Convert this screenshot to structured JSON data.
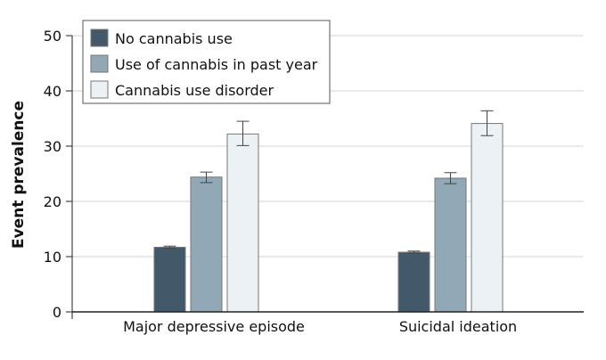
{
  "chart_data": {
    "type": "bar",
    "title": "",
    "xlabel": "",
    "ylabel": "Event prevalence",
    "ylim": [
      0,
      50
    ],
    "yticks": [
      0,
      10,
      20,
      30,
      40,
      50
    ],
    "grid": true,
    "legend_placement": "top-left",
    "categories": [
      "Major depressive episode",
      "Suicidal ideation"
    ],
    "series": [
      {
        "name": "No cannabis use",
        "color": "#43596a",
        "values": [
          11.7,
          10.8
        ],
        "error_low": [
          11.5,
          10.6
        ],
        "error_high": [
          11.9,
          11.0
        ]
      },
      {
        "name": "Use of cannabis in past year",
        "color": "#91a8b6",
        "values": [
          24.4,
          24.2
        ],
        "error_low": [
          23.4,
          23.2
        ],
        "error_high": [
          25.3,
          25.2
        ]
      },
      {
        "name": "Cannabis use disorder",
        "color": "#ecf1f5",
        "values": [
          32.2,
          34.1
        ],
        "error_low": [
          30.1,
          31.9
        ],
        "error_high": [
          34.5,
          36.4
        ]
      }
    ]
  }
}
